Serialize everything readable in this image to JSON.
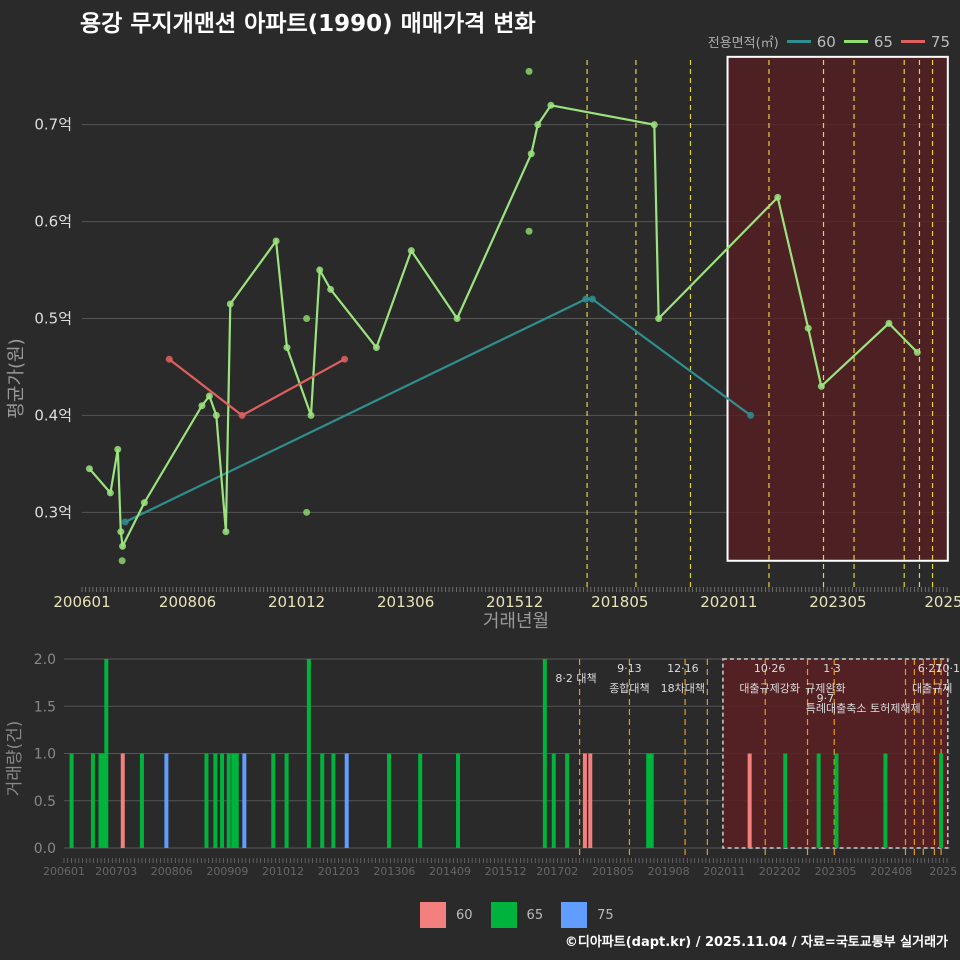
{
  "title": "용강 무지개맨션 아파트(1990) 매매가격 변화",
  "footer": "©디아파트(dapt.kr) / 2025.11.04 / 자료=국토교통부 실거래가",
  "colors": {
    "s60": "#e06060",
    "s65": "#90e070",
    "s65line": "#9be37e",
    "s75": "#6699ff",
    "s60line": "#2f8f8f",
    "bar60": "#f47f7f",
    "bar65": "#00b33c",
    "bar75": "#619cff"
  },
  "legend": {
    "title": "전용면적(㎡)",
    "items": [
      "60",
      "65",
      "75"
    ]
  },
  "chart_data": [
    {
      "type": "line",
      "title": "용강 무지개맨션 아파트(1990) 매매가격 변화",
      "xlabel": "거래년월",
      "ylabel": "평균가(원)",
      "xlim": [
        2006.0,
        2025.9
      ],
      "ylim": [
        0.225,
        0.775
      ],
      "xticks": [
        "200601",
        "200806",
        "201012",
        "201306",
        "201512",
        "201805",
        "202011",
        "202305",
        "2025"
      ],
      "yticks": [
        "0.3억",
        "0.4억",
        "0.5억",
        "0.6억",
        "0.7억"
      ],
      "ytick_values": [
        0.3,
        0.4,
        0.5,
        0.6,
        0.7
      ],
      "series": [
        {
          "name": "60",
          "points": [
            [
              2006.99,
              0.29
            ],
            [
              2017.55,
              0.52
            ],
            [
              2017.7,
              0.52
            ],
            [
              2021.33,
              0.4
            ]
          ]
        },
        {
          "name": "65",
          "points": [
            [
              2006.17,
              0.345
            ],
            [
              2006.65,
              0.32
            ],
            [
              2006.82,
              0.365
            ],
            [
              2006.89,
              0.28
            ],
            [
              2006.93,
              0.265
            ],
            [
              2007.43,
              0.31
            ],
            [
              2008.75,
              0.41
            ],
            [
              2008.92,
              0.42
            ],
            [
              2009.08,
              0.4
            ],
            [
              2009.3,
              0.28
            ],
            [
              2009.4,
              0.515
            ],
            [
              2010.45,
              0.58
            ],
            [
              2010.7,
              0.47
            ],
            [
              2011.25,
              0.4
            ],
            [
              2011.45,
              0.55
            ],
            [
              2011.7,
              0.53
            ],
            [
              2012.75,
              0.47
            ],
            [
              2013.55,
              0.57
            ],
            [
              2014.6,
              0.5
            ],
            [
              2016.3,
              0.67
            ],
            [
              2016.45,
              0.7
            ],
            [
              2016.75,
              0.72
            ],
            [
              2019.12,
              0.7
            ],
            [
              2019.22,
              0.5
            ],
            [
              2021.95,
              0.625
            ],
            [
              2022.65,
              0.49
            ],
            [
              2022.95,
              0.43
            ],
            [
              2024.5,
              0.495
            ],
            [
              2025.15,
              0.465
            ]
          ]
        },
        {
          "name": "75",
          "points": [
            [
              2008.0,
              0.458
            ],
            [
              2009.67,
              0.4
            ],
            [
              2012.02,
              0.458
            ]
          ]
        }
      ],
      "scatter": [
        [
          2006.92,
          0.25
        ],
        [
          2011.15,
          0.3
        ],
        [
          2011.15,
          0.5
        ],
        [
          2016.25,
          0.59
        ],
        [
          2016.25,
          0.755
        ]
      ],
      "policy_lines": [
        2017.58,
        2018.7,
        2019.95,
        2021.75,
        2023.0,
        2023.7,
        2024.85,
        2025.2,
        2025.5
      ],
      "highlight": [
        2020.8,
        2025.85
      ]
    },
    {
      "type": "bar",
      "ylabel": "거래량(건)",
      "xlim": [
        2006.0,
        2025.9
      ],
      "ylim": [
        0,
        2.0
      ],
      "yticks": [
        "0.0",
        "0.5",
        "1.0",
        "1.5",
        "2.0"
      ],
      "ytick_values": [
        0,
        0.5,
        1.0,
        1.5,
        2.0
      ],
      "xticks": [
        "200601",
        "200703",
        "200806",
        "200909",
        "201012",
        "201203",
        "201306",
        "201409",
        "201512",
        "201702",
        "201805",
        "201908",
        "202011",
        "202202",
        "202305",
        "202408",
        "2025"
      ],
      "bars": [
        {
          "x": 2006.17,
          "v": 1,
          "s": "65"
        },
        {
          "x": 2006.65,
          "v": 1,
          "s": "65"
        },
        {
          "x": 2006.82,
          "v": 1,
          "s": "65"
        },
        {
          "x": 2006.89,
          "v": 1,
          "s": "65"
        },
        {
          "x": 2006.95,
          "v": 2,
          "s": "65"
        },
        {
          "x": 2007.32,
          "v": 1,
          "s": "60"
        },
        {
          "x": 2007.75,
          "v": 1,
          "s": "65"
        },
        {
          "x": 2008.3,
          "v": 1,
          "s": "75"
        },
        {
          "x": 2009.2,
          "v": 1,
          "s": "65"
        },
        {
          "x": 2009.4,
          "v": 1,
          "s": "65"
        },
        {
          "x": 2009.55,
          "v": 1,
          "s": "65"
        },
        {
          "x": 2009.7,
          "v": 1,
          "s": "65"
        },
        {
          "x": 2009.8,
          "v": 1,
          "s": "65"
        },
        {
          "x": 2009.88,
          "v": 1,
          "s": "65"
        },
        {
          "x": 2010.05,
          "v": 1,
          "s": "75"
        },
        {
          "x": 2010.7,
          "v": 1,
          "s": "65"
        },
        {
          "x": 2011.0,
          "v": 1,
          "s": "65"
        },
        {
          "x": 2011.5,
          "v": 2,
          "s": "65"
        },
        {
          "x": 2011.8,
          "v": 1,
          "s": "65"
        },
        {
          "x": 2012.05,
          "v": 1,
          "s": "65"
        },
        {
          "x": 2012.35,
          "v": 1,
          "s": "75"
        },
        {
          "x": 2013.3,
          "v": 1,
          "s": "65"
        },
        {
          "x": 2014.0,
          "v": 1,
          "s": "65"
        },
        {
          "x": 2014.85,
          "v": 1,
          "s": "65"
        },
        {
          "x": 2016.8,
          "v": 2,
          "s": "65"
        },
        {
          "x": 2017.0,
          "v": 1,
          "s": "65"
        },
        {
          "x": 2017.3,
          "v": 1,
          "s": "65"
        },
        {
          "x": 2017.7,
          "v": 1,
          "s": "60"
        },
        {
          "x": 2017.82,
          "v": 1,
          "s": "60"
        },
        {
          "x": 2019.12,
          "v": 1,
          "s": "65"
        },
        {
          "x": 2019.2,
          "v": 1,
          "s": "65"
        },
        {
          "x": 2021.4,
          "v": 1,
          "s": "60"
        },
        {
          "x": 2022.2,
          "v": 1,
          "s": "65"
        },
        {
          "x": 2022.95,
          "v": 1,
          "s": "65"
        },
        {
          "x": 2023.35,
          "v": 1,
          "s": "65"
        },
        {
          "x": 2024.45,
          "v": 1,
          "s": "65"
        },
        {
          "x": 2025.7,
          "v": 1,
          "s": "65"
        }
      ],
      "policy_lines": [
        2017.58,
        2018.7,
        2019.95,
        2020.45,
        2021.75,
        2022.7,
        2023.3,
        2024.9,
        2025.1,
        2025.3,
        2025.55,
        2025.7
      ],
      "highlight": [
        2020.8,
        2025.85
      ],
      "annotations": [
        {
          "x": 2017.5,
          "row": 1,
          "text": "8·2 대책"
        },
        {
          "x": 2018.7,
          "row": 0,
          "text": "9·13"
        },
        {
          "x": 2018.7,
          "row": 2,
          "text": "종합대책"
        },
        {
          "x": 2019.9,
          "row": 0,
          "text": "12·16"
        },
        {
          "x": 2019.9,
          "row": 2,
          "text": "18차대책"
        },
        {
          "x": 2021.85,
          "row": 0,
          "text": "10·26"
        },
        {
          "x": 2021.85,
          "row": 2,
          "text": "대출규제강화"
        },
        {
          "x": 2023.25,
          "row": 0,
          "text": "1·3"
        },
        {
          "x": 2023.1,
          "row": 2,
          "text": "규제완화"
        },
        {
          "x": 2023.1,
          "row": 3,
          "text": "9·7"
        },
        {
          "x": 2023.95,
          "row": 4,
          "text": "특례대출축소 토허제해제"
        },
        {
          "x": 2025.45,
          "row": 0,
          "text": "6·27"
        },
        {
          "x": 2025.85,
          "row": 0,
          "text": "10·1"
        },
        {
          "x": 2025.5,
          "row": 2,
          "text": "대출규제"
        }
      ]
    }
  ]
}
